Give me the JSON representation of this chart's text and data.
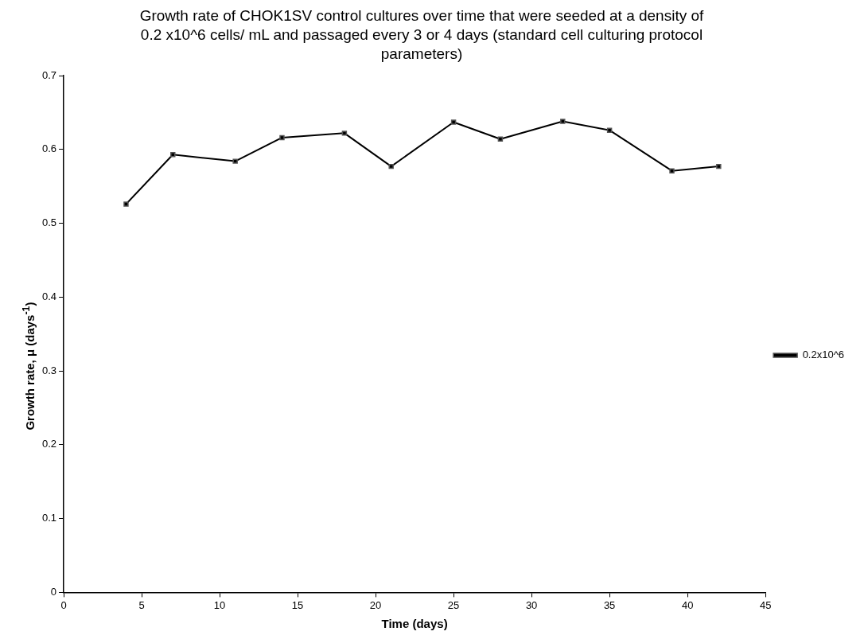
{
  "chart_data": {
    "type": "line",
    "title": "Growth rate of CHOK1SV control cultures over time that were seeded at a density of 0.2 x10^6 cells/ mL and passaged every 3 or 4 days (standard cell culturing protocol parameters)",
    "xlabel": "Time (days)",
    "ylabel": "Growth rate, μ (days$^{-1}$)",
    "x": [
      4,
      7,
      11,
      14,
      18,
      21,
      25,
      28,
      32,
      35,
      39,
      42
    ],
    "series": [
      {
        "name": "0.2x10^6",
        "color": "#000000",
        "values": [
          0.526,
          0.593,
          0.584,
          0.616,
          0.622,
          0.577,
          0.637,
          0.614,
          0.638,
          0.626,
          0.571,
          0.577
        ]
      }
    ],
    "xlim": [
      0,
      45
    ],
    "xticks": [
      0,
      5,
      10,
      15,
      20,
      25,
      30,
      35,
      40,
      45
    ],
    "ylim": [
      0,
      0.7
    ],
    "yticks": [
      0,
      0.1,
      0.2,
      0.3,
      0.4,
      0.5,
      0.6,
      0.7
    ],
    "grid": false,
    "legend": "right",
    "marker": "square",
    "line_style": "solid"
  }
}
